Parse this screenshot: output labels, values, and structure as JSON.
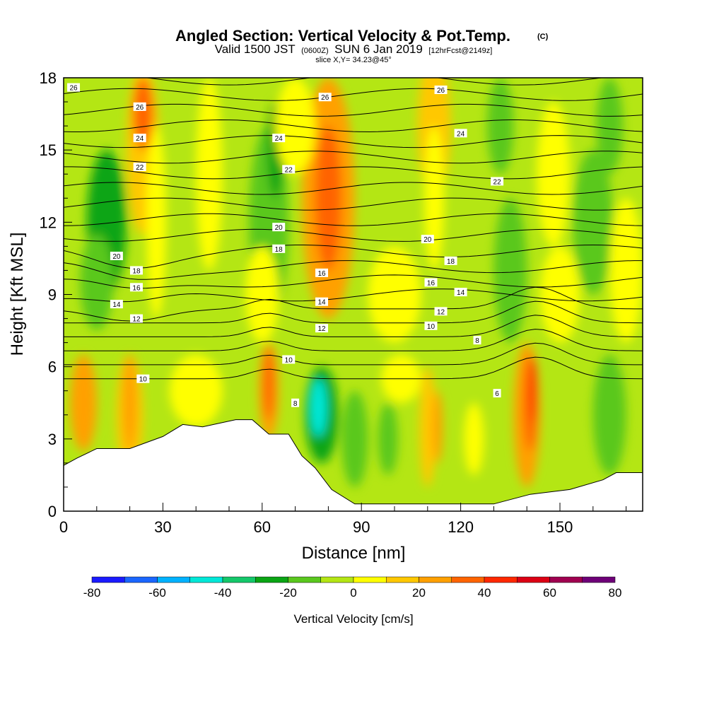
{
  "header": {
    "title": "Angled Section: Vertical Velocity & Pot.Temp.",
    "title_unit": "(C)",
    "valid_prefix": "Valid 1500 JST",
    "valid_zulu": "(0600Z)",
    "valid_date": "SUN 6 Jan 2019",
    "forecast": "[12hrFcst@2149z]",
    "slice": "slice X,Y= 34.23@45°"
  },
  "chart_data": {
    "type": "heatmap",
    "title": "Angled Section: Vertical Velocity & Pot.Temp.",
    "xlabel": "Distance [nm]",
    "ylabel": "Height [Kft MSL]",
    "xlim": [
      0,
      175
    ],
    "ylim": [
      0,
      18
    ],
    "xticks": [
      0,
      30,
      60,
      90,
      120,
      150
    ],
    "yticks": [
      0,
      3,
      6,
      9,
      12,
      15,
      18
    ],
    "colorbar": {
      "title": "Vertical Velocity [cm/s]",
      "ticks": [
        -80,
        -60,
        -40,
        -20,
        0,
        20,
        40,
        60,
        80
      ],
      "levels": [
        -80,
        -70,
        -60,
        -50,
        -40,
        -30,
        -20,
        -10,
        0,
        10,
        20,
        30,
        40,
        50,
        60,
        70,
        80
      ],
      "colors": [
        "#1a1aff",
        "#1a66ff",
        "#00b2ff",
        "#00e8d8",
        "#14c86a",
        "#0aa514",
        "#5ac81e",
        "#b4e614",
        "#ffff00",
        "#ffc800",
        "#ffa000",
        "#ff6400",
        "#ff2800",
        "#dc0014",
        "#a00050",
        "#6e0078"
      ]
    },
    "terrain": [
      [
        0,
        1.9
      ],
      [
        4,
        2.2
      ],
      [
        10,
        2.6
      ],
      [
        20,
        2.6
      ],
      [
        30,
        3.1
      ],
      [
        36,
        3.6
      ],
      [
        42,
        3.5
      ],
      [
        52,
        3.8
      ],
      [
        57,
        3.8
      ],
      [
        62,
        3.2
      ],
      [
        68,
        3.2
      ],
      [
        72,
        2.3
      ],
      [
        76,
        1.8
      ],
      [
        81,
        0.9
      ],
      [
        88,
        0.3
      ],
      [
        100,
        0.3
      ],
      [
        130,
        0.3
      ],
      [
        141,
        0.7
      ],
      [
        153,
        0.9
      ],
      [
        163,
        1.3
      ],
      [
        167,
        1.6
      ],
      [
        175,
        1.6
      ]
    ],
    "contour_labels": [
      {
        "text": "26",
        "x": 3,
        "y": 17.6
      },
      {
        "text": "26",
        "x": 23,
        "y": 16.8
      },
      {
        "text": "24",
        "x": 23,
        "y": 15.5
      },
      {
        "text": "22",
        "x": 23,
        "y": 14.3
      },
      {
        "text": "24",
        "x": 65,
        "y": 15.5
      },
      {
        "text": "22",
        "x": 68,
        "y": 14.2
      },
      {
        "text": "26",
        "x": 79,
        "y": 17.2
      },
      {
        "text": "26",
        "x": 114,
        "y": 17.5
      },
      {
        "text": "24",
        "x": 120,
        "y": 15.7
      },
      {
        "text": "22",
        "x": 131,
        "y": 13.7
      },
      {
        "text": "20",
        "x": 16,
        "y": 10.6
      },
      {
        "text": "18",
        "x": 22,
        "y": 10.0
      },
      {
        "text": "16",
        "x": 22,
        "y": 9.3
      },
      {
        "text": "14",
        "x": 16,
        "y": 8.6
      },
      {
        "text": "12",
        "x": 22,
        "y": 8.0
      },
      {
        "text": "20",
        "x": 65,
        "y": 11.8
      },
      {
        "text": "18",
        "x": 65,
        "y": 10.9
      },
      {
        "text": "16",
        "x": 78,
        "y": 9.9
      },
      {
        "text": "14",
        "x": 78,
        "y": 8.7
      },
      {
        "text": "12",
        "x": 78,
        "y": 7.6
      },
      {
        "text": "10",
        "x": 68,
        "y": 6.3
      },
      {
        "text": "8",
        "x": 70,
        "y": 4.5
      },
      {
        "text": "20",
        "x": 110,
        "y": 11.3
      },
      {
        "text": "18",
        "x": 117,
        "y": 10.4
      },
      {
        "text": "16",
        "x": 111,
        "y": 9.5
      },
      {
        "text": "14",
        "x": 120,
        "y": 9.1
      },
      {
        "text": "12",
        "x": 114,
        "y": 8.3
      },
      {
        "text": "10",
        "x": 111,
        "y": 7.7
      },
      {
        "text": "8",
        "x": 125,
        "y": 7.1
      },
      {
        "text": "6",
        "x": 131,
        "y": 4.9
      },
      {
        "text": "10",
        "x": 24,
        "y": 5.5
      }
    ]
  }
}
